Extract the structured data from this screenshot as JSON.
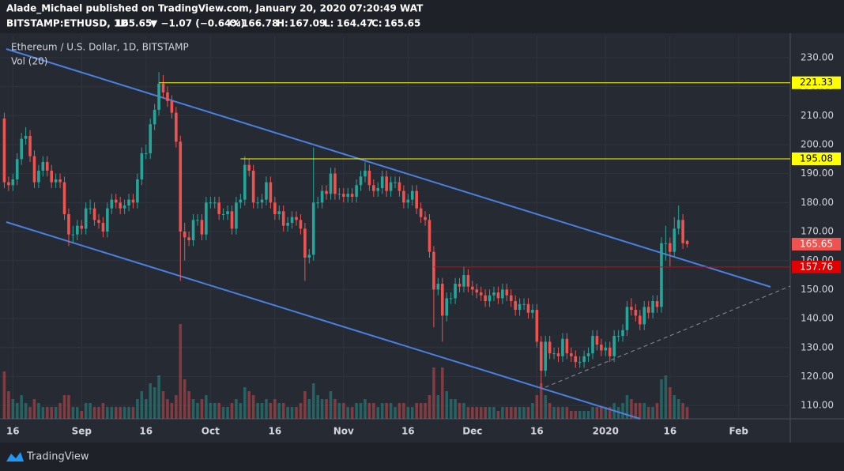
{
  "header": {
    "publisher": "Alade_Michael published on TradingView.com, January 20, 2020 07:20:49 WAT",
    "symbol": "BITSTAMP:ETHUSD, 1D",
    "change": "▼ −1.07 (−0.64%)",
    "ohlc_captions": [
      "O:",
      "H:",
      "L:",
      "C:"
    ]
  },
  "footer": {
    "brand": "TradingView"
  },
  "chart_data": {
    "type": "candlestick",
    "title": "Ethereum / U.S. Dollar, 1D, BITSTAMP",
    "volume_title": "Vol (20)",
    "up_color": "#26a69a",
    "down_color": "#ef5350",
    "grid": true,
    "x": [
      "2019-08-14",
      "2019-08-15",
      "2019-08-16",
      "2019-08-17",
      "2019-08-18",
      "2019-08-19",
      "2019-08-20",
      "2019-08-21",
      "2019-08-22",
      "2019-08-23",
      "2019-08-24",
      "2019-08-25",
      "2019-08-26",
      "2019-08-27",
      "2019-08-28",
      "2019-08-29",
      "2019-08-30",
      "2019-08-31",
      "2019-09-01",
      "2019-09-02",
      "2019-09-03",
      "2019-09-04",
      "2019-09-05",
      "2019-09-06",
      "2019-09-07",
      "2019-09-08",
      "2019-09-09",
      "2019-09-10",
      "2019-09-11",
      "2019-09-12",
      "2019-09-13",
      "2019-09-14",
      "2019-09-15",
      "2019-09-16",
      "2019-09-17",
      "2019-09-18",
      "2019-09-19",
      "2019-09-20",
      "2019-09-21",
      "2019-09-22",
      "2019-09-23",
      "2019-09-24",
      "2019-09-25",
      "2019-09-26",
      "2019-09-27",
      "2019-09-28",
      "2019-09-29",
      "2019-09-30",
      "2019-10-01",
      "2019-10-02",
      "2019-10-03",
      "2019-10-04",
      "2019-10-05",
      "2019-10-06",
      "2019-10-07",
      "2019-10-08",
      "2019-10-09",
      "2019-10-10",
      "2019-10-11",
      "2019-10-12",
      "2019-10-13",
      "2019-10-14",
      "2019-10-15",
      "2019-10-16",
      "2019-10-17",
      "2019-10-18",
      "2019-10-19",
      "2019-10-20",
      "2019-10-21",
      "2019-10-22",
      "2019-10-23",
      "2019-10-24",
      "2019-10-25",
      "2019-10-26",
      "2019-10-27",
      "2019-10-28",
      "2019-10-29",
      "2019-10-30",
      "2019-10-31",
      "2019-11-01",
      "2019-11-02",
      "2019-11-03",
      "2019-11-04",
      "2019-11-05",
      "2019-11-06",
      "2019-11-07",
      "2019-11-08",
      "2019-11-09",
      "2019-11-10",
      "2019-11-11",
      "2019-11-12",
      "2019-11-13",
      "2019-11-14",
      "2019-11-15",
      "2019-11-16",
      "2019-11-17",
      "2019-11-18",
      "2019-11-19",
      "2019-11-20",
      "2019-11-21",
      "2019-11-22",
      "2019-11-23",
      "2019-11-24",
      "2019-11-25",
      "2019-11-26",
      "2019-11-27",
      "2019-11-28",
      "2019-11-29",
      "2019-11-30",
      "2019-12-01",
      "2019-12-02",
      "2019-12-03",
      "2019-12-04",
      "2019-12-05",
      "2019-12-06",
      "2019-12-07",
      "2019-12-08",
      "2019-12-09",
      "2019-12-10",
      "2019-12-11",
      "2019-12-12",
      "2019-12-13",
      "2019-12-14",
      "2019-12-15",
      "2019-12-16",
      "2019-12-17",
      "2019-12-18",
      "2019-12-19",
      "2019-12-20",
      "2019-12-21",
      "2019-12-22",
      "2019-12-23",
      "2019-12-24",
      "2019-12-25",
      "2019-12-26",
      "2019-12-27",
      "2019-12-28",
      "2019-12-29",
      "2019-12-30",
      "2019-12-31",
      "2020-01-01",
      "2020-01-02",
      "2020-01-03",
      "2020-01-04",
      "2020-01-05",
      "2020-01-06",
      "2020-01-07",
      "2020-01-08",
      "2020-01-09",
      "2020-01-10",
      "2020-01-11",
      "2020-01-12",
      "2020-01-13",
      "2020-01-14",
      "2020-01-15",
      "2020-01-16",
      "2020-01-17",
      "2020-01-18",
      "2020-01-19",
      "2020-01-20"
    ],
    "ohlc": [
      [
        209,
        211,
        185,
        187
      ],
      [
        187,
        189,
        184,
        186
      ],
      [
        186,
        190,
        184,
        188
      ],
      [
        188,
        197,
        186,
        195
      ],
      [
        195,
        204,
        193,
        202
      ],
      [
        202,
        206,
        200,
        203
      ],
      [
        203,
        205,
        194,
        196
      ],
      [
        196,
        198,
        185,
        187
      ],
      [
        187,
        193,
        185,
        191
      ],
      [
        191,
        196,
        189,
        194
      ],
      [
        194,
        196,
        189,
        191
      ],
      [
        191,
        193,
        185,
        187
      ],
      [
        187,
        190,
        185,
        188
      ],
      [
        188,
        190,
        185,
        187
      ],
      [
        187,
        189,
        174,
        176
      ],
      [
        176,
        178,
        165,
        169
      ],
      [
        169,
        172,
        166,
        169
      ],
      [
        169,
        174,
        167,
        172
      ],
      [
        172,
        174,
        169,
        171
      ],
      [
        171,
        180,
        169,
        178
      ],
      [
        178,
        181,
        176,
        178
      ],
      [
        178,
        180,
        172,
        174
      ],
      [
        174,
        176,
        171,
        173
      ],
      [
        173,
        175,
        168,
        170
      ],
      [
        170,
        180,
        168,
        178
      ],
      [
        178,
        183,
        176,
        181
      ],
      [
        181,
        183,
        178,
        180
      ],
      [
        180,
        182,
        176,
        178
      ],
      [
        178,
        181,
        176,
        179
      ],
      [
        179,
        183,
        177,
        181
      ],
      [
        181,
        183,
        178,
        180
      ],
      [
        180,
        190,
        178,
        188
      ],
      [
        188,
        199,
        186,
        197
      ],
      [
        197,
        200,
        195,
        197
      ],
      [
        197,
        209,
        195,
        207
      ],
      [
        207,
        214,
        205,
        212
      ],
      [
        212,
        225,
        210,
        221
      ],
      [
        221,
        224,
        216,
        218
      ],
      [
        218,
        220,
        213,
        215
      ],
      [
        215,
        217,
        209,
        211
      ],
      [
        211,
        213,
        199,
        201
      ],
      [
        201,
        203,
        153,
        170
      ],
      [
        170,
        173,
        160,
        168
      ],
      [
        168,
        170,
        165,
        167
      ],
      [
        167,
        176,
        165,
        174
      ],
      [
        174,
        176,
        172,
        174
      ],
      [
        174,
        176,
        167,
        169
      ],
      [
        169,
        182,
        167,
        180
      ],
      [
        180,
        182,
        178,
        180
      ],
      [
        180,
        182,
        178,
        180
      ],
      [
        180,
        182,
        174,
        176
      ],
      [
        176,
        178,
        174,
        176
      ],
      [
        176,
        179,
        174,
        177
      ],
      [
        177,
        179,
        169,
        171
      ],
      [
        171,
        182,
        169,
        180
      ],
      [
        180,
        183,
        178,
        181
      ],
      [
        181,
        196,
        179,
        193
      ],
      [
        193,
        195,
        189,
        191
      ],
      [
        191,
        193,
        178,
        180
      ],
      [
        180,
        182,
        178,
        180
      ],
      [
        180,
        183,
        178,
        181
      ],
      [
        181,
        189,
        179,
        187
      ],
      [
        187,
        189,
        178,
        180
      ],
      [
        180,
        182,
        174,
        176
      ],
      [
        176,
        179,
        174,
        177
      ],
      [
        177,
        179,
        170,
        172
      ],
      [
        172,
        175,
        170,
        173
      ],
      [
        173,
        177,
        171,
        175
      ],
      [
        175,
        177,
        172,
        174
      ],
      [
        174,
        176,
        169,
        171
      ],
      [
        171,
        173,
        153,
        161
      ],
      [
        161,
        164,
        159,
        162
      ],
      [
        162,
        199,
        160,
        180
      ],
      [
        180,
        182,
        178,
        180
      ],
      [
        180,
        186,
        178,
        184
      ],
      [
        184,
        186,
        181,
        183
      ],
      [
        183,
        192,
        181,
        190
      ],
      [
        190,
        192,
        181,
        183
      ],
      [
        183,
        185,
        181,
        183
      ],
      [
        183,
        185,
        180,
        182
      ],
      [
        182,
        185,
        180,
        183
      ],
      [
        183,
        185,
        180,
        182
      ],
      [
        182,
        188,
        180,
        186
      ],
      [
        186,
        191,
        184,
        189
      ],
      [
        189,
        194,
        187,
        191
      ],
      [
        191,
        193,
        184,
        186
      ],
      [
        186,
        188,
        182,
        184
      ],
      [
        184,
        187,
        182,
        185
      ],
      [
        185,
        191,
        183,
        189
      ],
      [
        189,
        191,
        182,
        184
      ],
      [
        184,
        189,
        182,
        187
      ],
      [
        187,
        189,
        185,
        187
      ],
      [
        187,
        189,
        182,
        184
      ],
      [
        184,
        186,
        178,
        180
      ],
      [
        180,
        183,
        178,
        181
      ],
      [
        181,
        186,
        179,
        184
      ],
      [
        184,
        186,
        176,
        178
      ],
      [
        178,
        180,
        173,
        175
      ],
      [
        175,
        177,
        172,
        174
      ],
      [
        174,
        176,
        161,
        163
      ],
      [
        163,
        165,
        137,
        150
      ],
      [
        150,
        154,
        148,
        152
      ],
      [
        152,
        154,
        132,
        141
      ],
      [
        141,
        149,
        139,
        147
      ],
      [
        147,
        149,
        145,
        147
      ],
      [
        147,
        154,
        145,
        152
      ],
      [
        152,
        154,
        149,
        151
      ],
      [
        151,
        158,
        149,
        155
      ],
      [
        155,
        157,
        149,
        151
      ],
      [
        151,
        153,
        148,
        150
      ],
      [
        150,
        152,
        147,
        149
      ],
      [
        149,
        151,
        146,
        148
      ],
      [
        148,
        150,
        144,
        146
      ],
      [
        146,
        150,
        144,
        148
      ],
      [
        148,
        151,
        146,
        149
      ],
      [
        149,
        151,
        145,
        147
      ],
      [
        147,
        152,
        145,
        150
      ],
      [
        150,
        152,
        146,
        148
      ],
      [
        148,
        150,
        144,
        146
      ],
      [
        146,
        148,
        141,
        143
      ],
      [
        143,
        147,
        141,
        145
      ],
      [
        145,
        147,
        143,
        145
      ],
      [
        145,
        147,
        140,
        142
      ],
      [
        142,
        145,
        140,
        143
      ],
      [
        143,
        145,
        130,
        132
      ],
      [
        132,
        134,
        116,
        122
      ],
      [
        122,
        134,
        120,
        132
      ],
      [
        132,
        134,
        126,
        128
      ],
      [
        128,
        130,
        126,
        128
      ],
      [
        128,
        130,
        125,
        127
      ],
      [
        127,
        135,
        125,
        133
      ],
      [
        133,
        135,
        126,
        128
      ],
      [
        128,
        130,
        125,
        127
      ],
      [
        127,
        129,
        123,
        125
      ],
      [
        125,
        127,
        123,
        125
      ],
      [
        125,
        129,
        123,
        127
      ],
      [
        127,
        130,
        125,
        128
      ],
      [
        128,
        136,
        126,
        134
      ],
      [
        134,
        136,
        129,
        131
      ],
      [
        131,
        133,
        127,
        129
      ],
      [
        129,
        132,
        127,
        130
      ],
      [
        130,
        132,
        125,
        127
      ],
      [
        127,
        136,
        125,
        134
      ],
      [
        134,
        136,
        132,
        134
      ],
      [
        134,
        138,
        132,
        136
      ],
      [
        136,
        146,
        134,
        144
      ],
      [
        144,
        147,
        141,
        143
      ],
      [
        143,
        145,
        139,
        141
      ],
      [
        141,
        143,
        136,
        138
      ],
      [
        138,
        146,
        136,
        144
      ],
      [
        144,
        146,
        140,
        142
      ],
      [
        142,
        148,
        140,
        146
      ],
      [
        146,
        148,
        142,
        144
      ],
      [
        144,
        168,
        142,
        166
      ],
      [
        166,
        172,
        160,
        166
      ],
      [
        166,
        168,
        158,
        163
      ],
      [
        163,
        175,
        161,
        171
      ],
      [
        171,
        179,
        169,
        174
      ],
      [
        174,
        176,
        164,
        166
      ],
      [
        166.78,
        167.09,
        164.47,
        165.65
      ]
    ],
    "volume": {
      "ylim": [
        0,
        300000
      ],
      "values": [
        120000,
        70000,
        50000,
        40000,
        60000,
        40000,
        30000,
        50000,
        40000,
        30000,
        30000,
        30000,
        30000,
        40000,
        60000,
        60000,
        30000,
        30000,
        20000,
        40000,
        40000,
        30000,
        30000,
        40000,
        30000,
        30000,
        30000,
        30000,
        30000,
        30000,
        30000,
        50000,
        70000,
        50000,
        90000,
        80000,
        110000,
        70000,
        50000,
        40000,
        60000,
        240000,
        100000,
        70000,
        50000,
        40000,
        50000,
        60000,
        40000,
        40000,
        40000,
        30000,
        30000,
        40000,
        50000,
        40000,
        80000,
        70000,
        60000,
        40000,
        40000,
        50000,
        40000,
        50000,
        40000,
        40000,
        30000,
        30000,
        30000,
        40000,
        70000,
        50000,
        90000,
        60000,
        50000,
        50000,
        70000,
        50000,
        40000,
        40000,
        30000,
        30000,
        40000,
        40000,
        50000,
        40000,
        40000,
        30000,
        40000,
        40000,
        40000,
        30000,
        40000,
        40000,
        30000,
        30000,
        40000,
        40000,
        40000,
        60000,
        130000,
        60000,
        130000,
        70000,
        50000,
        50000,
        40000,
        40000,
        30000,
        30000,
        30000,
        30000,
        30000,
        30000,
        30000,
        20000,
        30000,
        30000,
        30000,
        30000,
        30000,
        30000,
        30000,
        40000,
        60000,
        90000,
        60000,
        40000,
        30000,
        30000,
        30000,
        30000,
        20000,
        20000,
        20000,
        20000,
        20000,
        30000,
        30000,
        30000,
        30000,
        30000,
        40000,
        30000,
        40000,
        60000,
        50000,
        40000,
        40000,
        40000,
        30000,
        30000,
        40000,
        100000,
        110000,
        80000,
        60000,
        50000,
        40000,
        30000
      ]
    },
    "xlim": [
      "2019-08-13",
      "2020-02-13"
    ],
    "xticks": [
      {
        "value": "2019-08-16",
        "label": "16"
      },
      {
        "value": "2019-09-01",
        "label": "Sep"
      },
      {
        "value": "2019-09-16",
        "label": "16"
      },
      {
        "value": "2019-10-01",
        "label": "Oct"
      },
      {
        "value": "2019-10-16",
        "label": "16"
      },
      {
        "value": "2019-11-01",
        "label": "Nov"
      },
      {
        "value": "2019-11-16",
        "label": "16"
      },
      {
        "value": "2019-12-01",
        "label": "Dec"
      },
      {
        "value": "2019-12-16",
        "label": "16"
      },
      {
        "value": "2020-01-01",
        "label": "2020"
      },
      {
        "value": "2020-01-16",
        "label": "16"
      },
      {
        "value": "2020-02-01",
        "label": "Feb"
      }
    ],
    "ylim": [
      105.4,
      237.6
    ],
    "yticks": [
      {
        "value": 110,
        "label": "110.00"
      },
      {
        "value": 120,
        "label": "120.00"
      },
      {
        "value": 130,
        "label": "130.00"
      },
      {
        "value": 140,
        "label": "140.00"
      },
      {
        "value": 150,
        "label": "150.00"
      },
      {
        "value": 160,
        "label": "160.00"
      },
      {
        "value": 170,
        "label": "170.00"
      },
      {
        "value": 180,
        "label": "180.00"
      },
      {
        "value": 190,
        "label": "190.00"
      },
      {
        "value": 200,
        "label": "200.00"
      },
      {
        "value": 210,
        "label": "210.00"
      },
      {
        "value": 220,
        "label": "220.00"
      },
      {
        "value": 230,
        "label": "230.00"
      }
    ],
    "levels": [
      {
        "value": 221.33,
        "start": "2019-09-19",
        "color": "#ffff00"
      },
      {
        "value": 195.08,
        "start": "2019-10-08",
        "color": "#ffff00"
      },
      {
        "value": 157.76,
        "start": "2019-11-22",
        "color": "#e00000"
      }
    ],
    "last_price": 165.65
  }
}
